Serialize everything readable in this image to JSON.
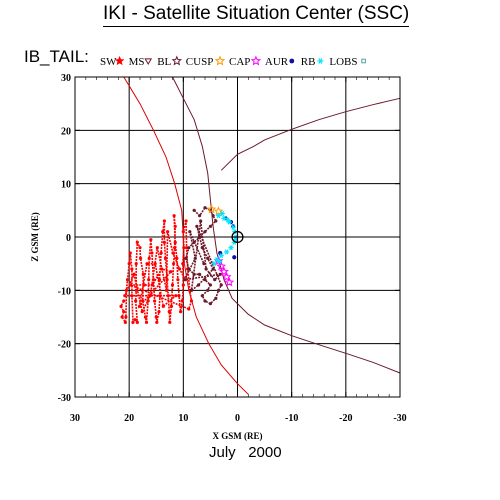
{
  "header": {
    "title": "IKI - Satellite Situation Center (SSC)"
  },
  "plot_label": "IB_TAIL:",
  "footer": {
    "month": "July",
    "year": "2000"
  },
  "colors": {
    "sw": "#ff0000",
    "ms": "#6b1a2a",
    "bl": "#6b1a2a",
    "cusp": "#ff9900",
    "cap": "#ff00ff",
    "aur": "#1010a0",
    "rb": "#00e5ff",
    "lobs": "#5aa0a0",
    "bow_shock": "#dd0000",
    "magnetopause": "#6b1a2a",
    "grid": "#000000"
  },
  "chart_data": {
    "type": "scatter",
    "xlabel": "X GSM (RE)",
    "ylabel": "Z GSM (RE)",
    "xlim": [
      30,
      -30
    ],
    "ylim": [
      -30,
      30
    ],
    "x_ticks": [
      30,
      20,
      10,
      0,
      -10,
      -20,
      -30
    ],
    "y_ticks": [
      30,
      20,
      10,
      0,
      -10,
      -20,
      -30
    ],
    "grid": true,
    "legend_placement": "top",
    "legend": [
      {
        "label": "SW",
        "symbol": "filled-star",
        "color": "#ff0000"
      },
      {
        "label": "MS",
        "symbol": "triangle-down",
        "color": "#6b1a2a"
      },
      {
        "label": "BL",
        "symbol": "star-outline",
        "color": "#6b1a2a"
      },
      {
        "label": "CUSP",
        "symbol": "star-outline",
        "color": "#ff9900"
      },
      {
        "label": "CAP",
        "symbol": "star-outline",
        "color": "#ff00ff"
      },
      {
        "label": "AUR",
        "symbol": "filled-circle",
        "color": "#1010a0"
      },
      {
        "label": "RB",
        "symbol": "asterisk",
        "color": "#00e5ff"
      },
      {
        "label": "LOBS",
        "symbol": "square",
        "color": "#5aa0a0"
      }
    ],
    "boundaries": [
      {
        "name": "bow-shock",
        "color": "#dd0000",
        "points": [
          [
            21,
            30
          ],
          [
            18,
            25
          ],
          [
            15.5,
            20
          ],
          [
            13.2,
            15
          ],
          [
            11.6,
            10
          ],
          [
            10.3,
            5
          ],
          [
            10,
            0
          ],
          [
            9.8,
            -5
          ],
          [
            9,
            -10
          ],
          [
            7.6,
            -15
          ],
          [
            5.3,
            -20
          ],
          [
            3,
            -24
          ],
          [
            0,
            -27.5
          ],
          [
            -2,
            -29.5
          ]
        ]
      },
      {
        "name": "magnetopause",
        "color": "#6b1a2a",
        "points": [
          [
            12,
            30
          ],
          [
            10,
            26
          ],
          [
            8,
            22
          ],
          [
            6.5,
            17
          ],
          [
            5.5,
            12
          ],
          [
            5,
            7
          ],
          [
            4.5,
            2
          ],
          [
            3.8,
            -3
          ],
          [
            2.5,
            -8
          ],
          [
            1,
            -11.5
          ],
          [
            -2,
            -14.5
          ],
          [
            -5,
            -16.5
          ],
          [
            -10,
            -18.5
          ],
          [
            -15,
            -20.2
          ],
          [
            -20,
            -21.8
          ],
          [
            -25,
            -23.5
          ],
          [
            -30,
            -25.5
          ]
        ]
      },
      {
        "name": "magnetopause-north",
        "color": "#6b1a2a",
        "points": [
          [
            3,
            12.5
          ],
          [
            0,
            15.5
          ],
          [
            -3,
            17
          ],
          [
            -5,
            18.2
          ],
          [
            -10,
            20.2
          ],
          [
            -15,
            22
          ],
          [
            -20,
            23.5
          ],
          [
            -25,
            24.8
          ],
          [
            -30,
            26
          ]
        ]
      }
    ],
    "series": [
      {
        "name": "SW",
        "color": "#ff0000",
        "points": [
          [
            21,
            -12
          ],
          [
            21.5,
            -13
          ],
          [
            21,
            -14
          ],
          [
            21.3,
            -15
          ],
          [
            20.7,
            -16
          ],
          [
            20.6,
            -15
          ],
          [
            20.5,
            -10
          ],
          [
            20.3,
            -8
          ],
          [
            20,
            -5
          ],
          [
            19.8,
            -3
          ],
          [
            19.5,
            -6
          ],
          [
            19.5,
            -11
          ],
          [
            19.3,
            -16
          ],
          [
            18.9,
            -15.5
          ],
          [
            18.5,
            -16
          ],
          [
            18.8,
            -12
          ],
          [
            18.7,
            -10
          ],
          [
            18.7,
            -5
          ],
          [
            18.5,
            -1
          ],
          [
            18,
            -2
          ],
          [
            17.9,
            -4
          ],
          [
            17.4,
            -7
          ],
          [
            17.5,
            -12
          ],
          [
            17,
            -15
          ],
          [
            16.8,
            -16
          ],
          [
            16.5,
            -12
          ],
          [
            16.4,
            -8
          ],
          [
            16.3,
            -4
          ],
          [
            16,
            -0.5
          ],
          [
            15.8,
            -3
          ],
          [
            15.5,
            -8
          ],
          [
            15.3,
            -12
          ],
          [
            15,
            -15
          ],
          [
            14.9,
            -16
          ],
          [
            14.5,
            -14
          ],
          [
            14.3,
            -11
          ],
          [
            14.4,
            -8
          ],
          [
            14.1,
            -3
          ],
          [
            13.8,
            1
          ],
          [
            13.5,
            3
          ],
          [
            13.5,
            -1
          ],
          [
            13.3,
            -4
          ],
          [
            13,
            -8
          ],
          [
            12.8,
            -11
          ],
          [
            12.6,
            -14
          ],
          [
            12.5,
            -16
          ],
          [
            12.2,
            -13
          ],
          [
            12,
            -9
          ],
          [
            11.8,
            -5
          ],
          [
            11.6,
            -2
          ],
          [
            11.5,
            2
          ],
          [
            11.7,
            4
          ],
          [
            11.5,
            -1
          ],
          [
            11.2,
            -4
          ],
          [
            11,
            -8
          ],
          [
            10.8,
            -11
          ],
          [
            10.5,
            -14
          ],
          [
            10.2,
            -12
          ],
          [
            10,
            -9
          ],
          [
            10.1,
            -5
          ],
          [
            9.9,
            -2
          ],
          [
            10,
            1
          ],
          [
            9.5,
            3
          ],
          [
            9.4,
            -2
          ],
          [
            9.2,
            -6
          ],
          [
            8.8,
            -10
          ],
          [
            8.5,
            -12
          ],
          [
            9,
            -13.5
          ],
          [
            19.8,
            -9
          ],
          [
            17.2,
            -9
          ],
          [
            15.7,
            -9
          ],
          [
            14,
            -6
          ],
          [
            12.3,
            -6.5
          ],
          [
            18.1,
            -13
          ],
          [
            16.7,
            -5
          ],
          [
            15.2,
            -5
          ],
          [
            13.7,
            -13
          ],
          [
            11.4,
            -11
          ],
          [
            20.8,
            -11
          ],
          [
            19.1,
            -7
          ],
          [
            17.6,
            -14
          ],
          [
            16.1,
            -11
          ],
          [
            14.8,
            -2
          ],
          [
            13.1,
            -10
          ],
          [
            12.9,
            1
          ],
          [
            11.9,
            -3
          ],
          [
            10.7,
            -6
          ],
          [
            9.6,
            -8
          ]
        ]
      },
      {
        "name": "MS",
        "color": "#6b1a2a",
        "points": [
          [
            8,
            5
          ],
          [
            7,
            4
          ],
          [
            6,
            5.5
          ],
          [
            5,
            5
          ],
          [
            4.5,
            4
          ],
          [
            4,
            3
          ],
          [
            5,
            2
          ],
          [
            6,
            1
          ],
          [
            7,
            0
          ],
          [
            8,
            -1
          ],
          [
            9,
            -2
          ],
          [
            9.5,
            -4
          ],
          [
            9,
            -6
          ],
          [
            8,
            -7
          ],
          [
            7,
            -7
          ],
          [
            6,
            -8
          ],
          [
            5,
            -9
          ],
          [
            5.5,
            -10
          ],
          [
            6.5,
            -11
          ],
          [
            6,
            -12
          ],
          [
            5,
            -12.5
          ],
          [
            4,
            -11.5
          ],
          [
            3.5,
            -10
          ],
          [
            3,
            -9
          ],
          [
            7.5,
            2
          ],
          [
            6.5,
            -2
          ],
          [
            5.5,
            -4
          ],
          [
            4.5,
            -6
          ],
          [
            7.2,
            -9
          ],
          [
            8.5,
            -10
          ],
          [
            6.8,
            3
          ],
          [
            5.8,
            -6
          ],
          [
            4.2,
            -8
          ],
          [
            3.2,
            -7
          ],
          [
            9.8,
            -8
          ],
          [
            7.8,
            -4
          ],
          [
            8.8,
            1
          ],
          [
            6.2,
            -5
          ]
        ]
      },
      {
        "name": "CUSP",
        "color": "#ff9900",
        "points": [
          [
            4.8,
            5.2
          ],
          [
            3.5,
            4.8
          ]
        ]
      },
      {
        "name": "CAP",
        "color": "#ff00ff",
        "points": [
          [
            3,
            -5.5
          ],
          [
            2.5,
            -6.5
          ],
          [
            2,
            -7.5
          ],
          [
            1.5,
            -8.5
          ],
          [
            3.5,
            -4.5
          ]
        ]
      },
      {
        "name": "AUR",
        "color": "#1010a0",
        "points": [
          [
            2.2,
            3.5
          ],
          [
            0.8,
            2
          ],
          [
            3.2,
            -3
          ],
          [
            0.6,
            -3.8
          ],
          [
            1.2,
            2.8
          ]
        ]
      },
      {
        "name": "RB",
        "color": "#00e5ff",
        "points": [
          [
            3.5,
            4
          ],
          [
            2.5,
            3.5
          ],
          [
            1.5,
            2.8
          ],
          [
            0.8,
            1.8
          ],
          [
            0.5,
            1
          ],
          [
            0.3,
            0
          ],
          [
            0.6,
            -1
          ],
          [
            1.2,
            -2
          ],
          [
            2,
            -2.8
          ],
          [
            3,
            -3.5
          ],
          [
            3.8,
            -4.2
          ],
          [
            4.3,
            -5
          ],
          [
            2.8,
            4.4
          ],
          [
            1.8,
            3.2
          ],
          [
            3.3,
            -4.6
          ],
          [
            0.4,
            -0.5
          ]
        ]
      },
      {
        "name": "LOBS",
        "color": "#5aa0a0",
        "points": []
      }
    ],
    "earth": {
      "x": 0,
      "z": 0,
      "radius": 1
    }
  }
}
